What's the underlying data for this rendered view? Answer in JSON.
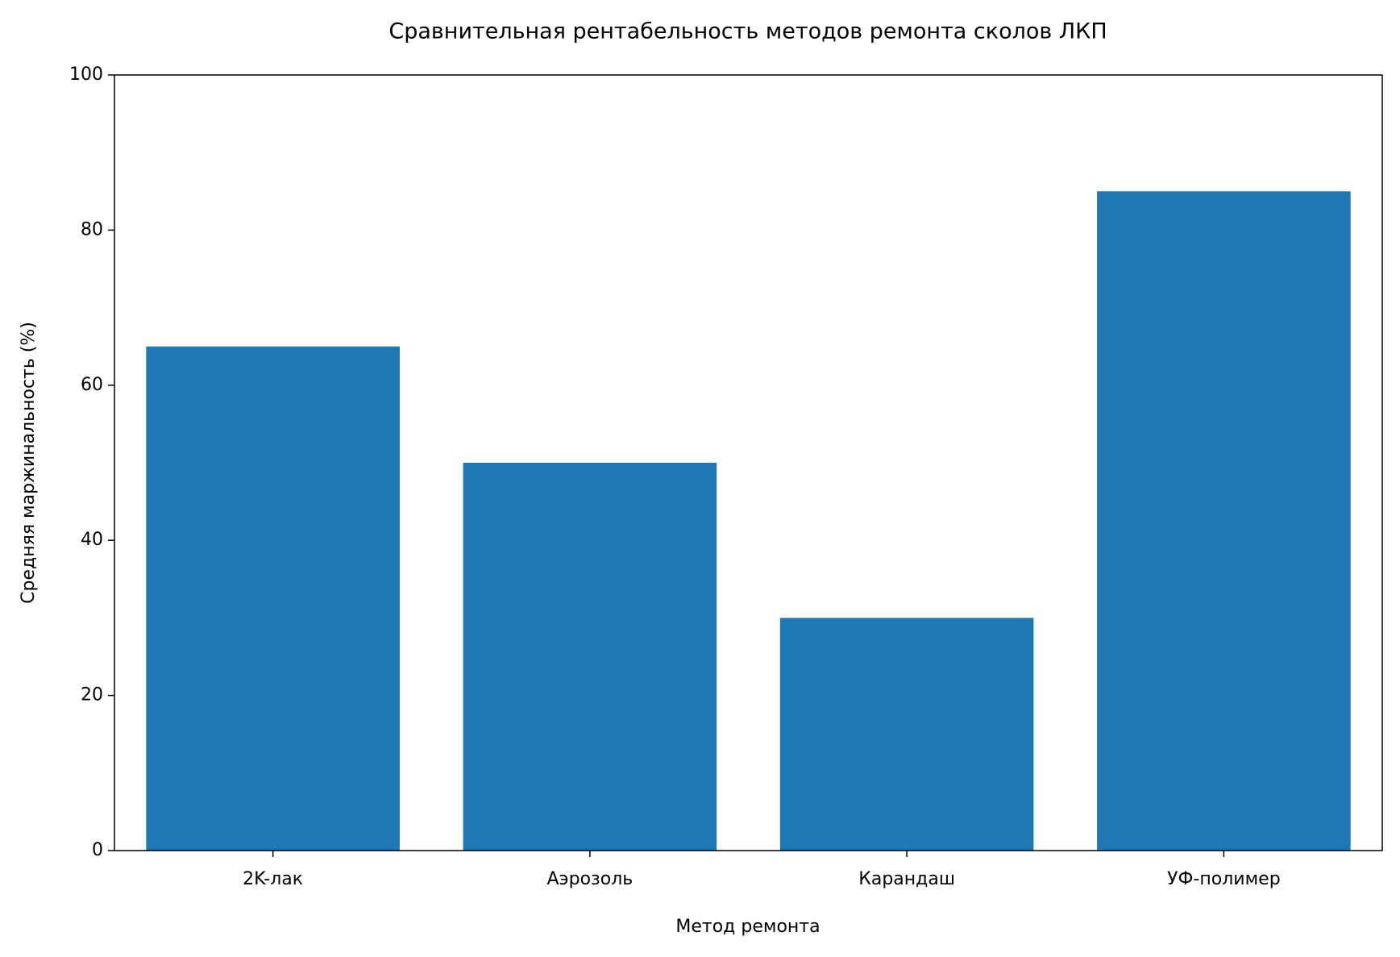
{
  "chart_data": {
    "type": "bar",
    "title": "Сравнительная рентабельность методов ремонта сколов ЛКП",
    "x_label": "Метод ремонта",
    "y_label": "Средняя маржинальность (%)",
    "categories": [
      "2K-лак",
      "Аэрозоль",
      "Карандаш",
      "УФ-полимер"
    ],
    "values": [
      65,
      50,
      30,
      85
    ],
    "color": "#1f77b4",
    "ylim": [
      0,
      100
    ],
    "yticks": [
      0,
      20,
      40,
      60,
      80,
      100
    ],
    "grid": false
  }
}
